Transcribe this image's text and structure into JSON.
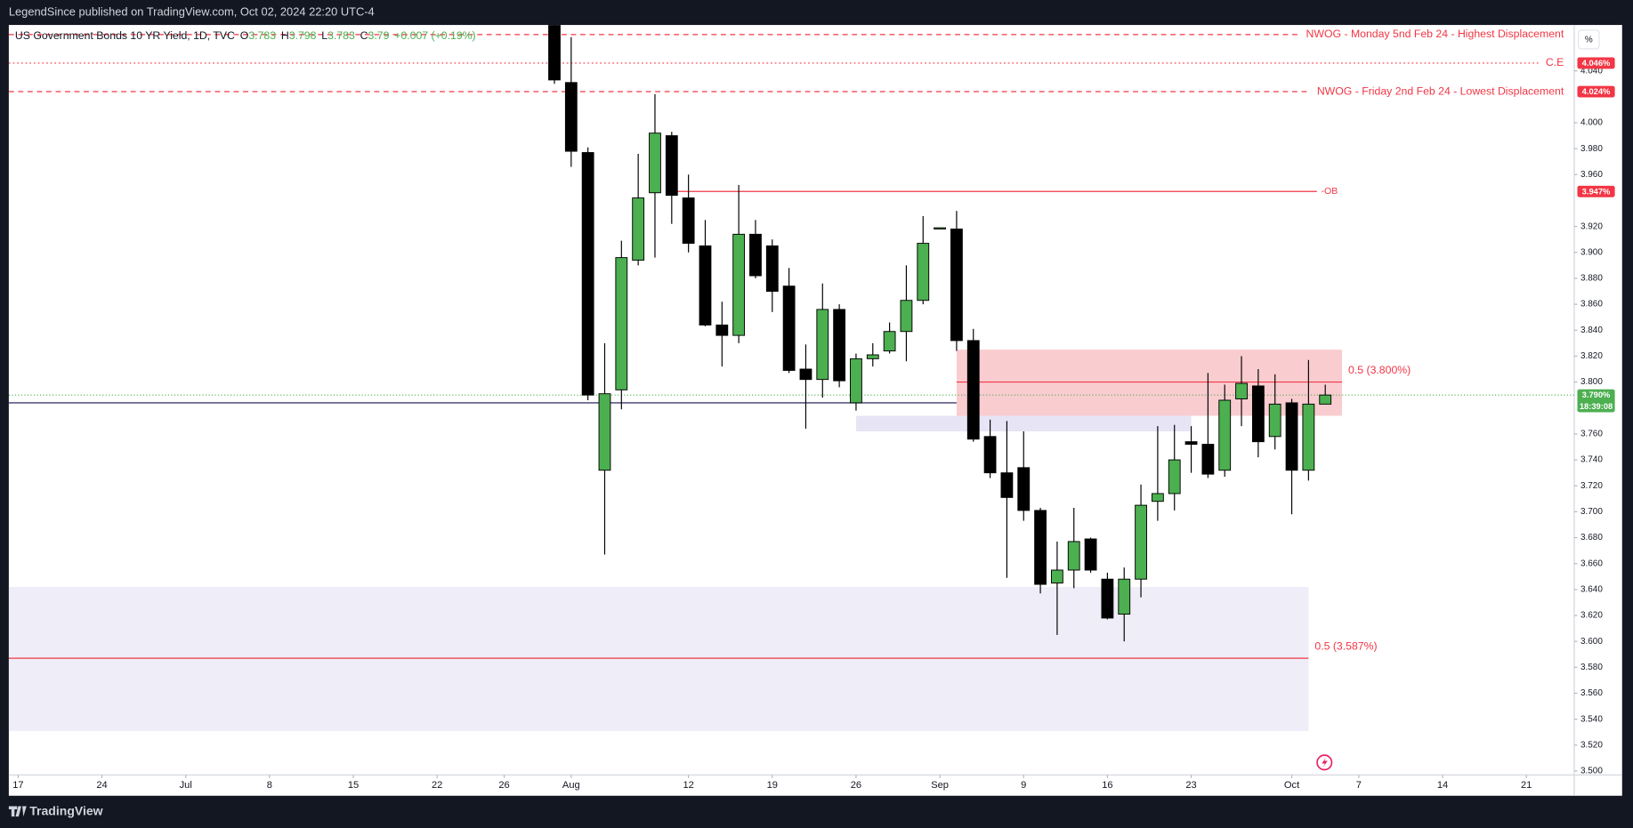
{
  "header": {
    "published": "LegendSince published on TradingView.com, Oct 02, 2024 22:20 UTC-4",
    "brand": "TradingView",
    "scale_button": "%"
  },
  "chart_data": {
    "type": "candlestick",
    "series": [
      {
        "name": "US Government Bonds 10 YR Yield, 1D, TVC",
        "up_color": "#4caf50",
        "down_color": "#000000",
        "wick_color": "#000000",
        "x": [
          "2024-07-31",
          "2024-08-01",
          "2024-08-02",
          "2024-08-05",
          "2024-08-06",
          "2024-08-07",
          "2024-08-08",
          "2024-08-09",
          "2024-08-12",
          "2024-08-13",
          "2024-08-14",
          "2024-08-15",
          "2024-08-16",
          "2024-08-19",
          "2024-08-20",
          "2024-08-21",
          "2024-08-22",
          "2024-08-23",
          "2024-08-26",
          "2024-08-27",
          "2024-08-28",
          "2024-08-29",
          "2024-08-30",
          "2024-09-02",
          "2024-09-03",
          "2024-09-04",
          "2024-09-05",
          "2024-09-06",
          "2024-09-09",
          "2024-09-10",
          "2024-09-11",
          "2024-09-12",
          "2024-09-13",
          "2024-09-16",
          "2024-09-17",
          "2024-09-18",
          "2024-09-19",
          "2024-09-20",
          "2024-09-23",
          "2024-09-24",
          "2024-09-25",
          "2024-09-26",
          "2024-09-27",
          "2024-09-30",
          "2024-10-01",
          "2024-10-02",
          "2024-10-03"
        ],
        "open": [
          4.08,
          4.031,
          3.977,
          3.732,
          3.794,
          3.894,
          3.946,
          3.99,
          3.942,
          3.905,
          3.844,
          3.836,
          3.914,
          3.905,
          3.874,
          3.81,
          3.802,
          3.856,
          3.784,
          3.818,
          3.824,
          3.839,
          3.863,
          3.919,
          3.918,
          3.832,
          3.758,
          3.73,
          3.734,
          3.701,
          3.645,
          3.655,
          3.679,
          3.648,
          3.621,
          3.648,
          3.708,
          3.714,
          3.754,
          3.752,
          3.732,
          3.787,
          3.797,
          3.758,
          3.784,
          3.732,
          3.783
        ],
        "high": [
          4.09,
          4.066,
          3.981,
          3.83,
          3.909,
          3.976,
          4.022,
          3.993,
          3.96,
          3.925,
          3.862,
          3.952,
          3.925,
          3.91,
          3.888,
          3.829,
          3.876,
          3.86,
          3.822,
          3.83,
          3.846,
          3.89,
          3.928,
          3.919,
          3.932,
          3.841,
          3.771,
          3.77,
          3.762,
          3.703,
          3.677,
          3.703,
          3.68,
          3.653,
          3.657,
          3.721,
          3.766,
          3.767,
          3.766,
          3.807,
          3.798,
          3.82,
          3.81,
          3.806,
          3.787,
          3.817,
          3.798
        ],
        "low": [
          4.03,
          3.966,
          3.786,
          3.667,
          3.779,
          3.89,
          3.896,
          3.922,
          3.9,
          3.843,
          3.812,
          3.83,
          3.88,
          3.854,
          3.807,
          3.764,
          3.788,
          3.796,
          3.778,
          3.812,
          3.822,
          3.816,
          3.86,
          3.919,
          3.824,
          3.754,
          3.726,
          3.649,
          3.693,
          3.637,
          3.605,
          3.641,
          3.653,
          3.617,
          3.6,
          3.634,
          3.693,
          3.701,
          3.73,
          3.726,
          3.727,
          3.766,
          3.742,
          3.748,
          3.698,
          3.724,
          3.783
        ],
        "close": [
          4.033,
          3.978,
          3.79,
          3.791,
          3.896,
          3.942,
          3.992,
          3.944,
          3.907,
          3.844,
          3.836,
          3.914,
          3.882,
          3.87,
          3.809,
          3.802,
          3.856,
          3.801,
          3.818,
          3.821,
          3.839,
          3.863,
          3.907,
          3.919,
          3.832,
          3.756,
          3.73,
          3.711,
          3.701,
          3.644,
          3.655,
          3.677,
          3.655,
          3.618,
          3.648,
          3.705,
          3.714,
          3.74,
          3.752,
          3.729,
          3.786,
          3.799,
          3.754,
          3.783,
          3.732,
          3.783,
          3.79
        ]
      }
    ],
    "ohlc_labels": [
      "O",
      "H",
      "L",
      "C"
    ],
    "change": "+0.007 (+0.19%)",
    "ylim": [
      3.497,
      4.0754
    ],
    "yticks": [
      {
        "value": 3.5,
        "label": "3.500"
      },
      {
        "value": 3.52,
        "label": "3.520"
      },
      {
        "value": 3.54,
        "label": "3.540"
      },
      {
        "value": 3.56,
        "label": "3.560"
      },
      {
        "value": 3.58,
        "label": "3.580"
      },
      {
        "value": 3.6,
        "label": "3.600"
      },
      {
        "value": 3.62,
        "label": "3.620"
      },
      {
        "value": 3.64,
        "label": "3.640"
      },
      {
        "value": 3.66,
        "label": "3.660"
      },
      {
        "value": 3.68,
        "label": "3.680"
      },
      {
        "value": 3.7,
        "label": "3.700"
      },
      {
        "value": 3.72,
        "label": "3.720"
      },
      {
        "value": 3.74,
        "label": "3.740"
      },
      {
        "value": 3.76,
        "label": "3.760"
      },
      {
        "value": 3.8,
        "label": "3.800"
      },
      {
        "value": 3.82,
        "label": "3.820"
      },
      {
        "value": 3.84,
        "label": "3.840"
      },
      {
        "value": 3.86,
        "label": "3.860"
      },
      {
        "value": 3.88,
        "label": "3.880"
      },
      {
        "value": 3.9,
        "label": "3.900"
      },
      {
        "value": 3.92,
        "label": "3.920"
      },
      {
        "value": 3.96,
        "label": "3.960"
      },
      {
        "value": 3.98,
        "label": "3.980"
      },
      {
        "value": 4.0,
        "label": "4.000"
      },
      {
        "value": 4.04,
        "label": "4.040"
      }
    ],
    "xticks": [
      {
        "value": "2024-06-17",
        "label": "17"
      },
      {
        "value": "2024-06-24",
        "label": "24"
      },
      {
        "value": "2024-07-01",
        "label": "Jul"
      },
      {
        "value": "2024-07-08",
        "label": "8"
      },
      {
        "value": "2024-07-15",
        "label": "15"
      },
      {
        "value": "2024-07-22",
        "label": "22"
      },
      {
        "value": "2024-07-26",
        "label": "26"
      },
      {
        "value": "2024-08-01",
        "label": "Aug"
      },
      {
        "value": "2024-08-12",
        "label": "12"
      },
      {
        "value": "2024-08-19",
        "label": "19"
      },
      {
        "value": "2024-08-26",
        "label": "26"
      },
      {
        "value": "2024-09-02",
        "label": "Sep"
      },
      {
        "value": "2024-09-09",
        "label": "9"
      },
      {
        "value": "2024-09-16",
        "label": "16"
      },
      {
        "value": "2024-09-23",
        "label": "23"
      },
      {
        "value": "2024-10-01",
        "label": "Oct"
      },
      {
        "value": "2024-10-07",
        "label": "7"
      },
      {
        "value": "2024-10-14",
        "label": "14"
      },
      {
        "value": "2024-10-21",
        "label": "21"
      }
    ],
    "levels": [
      {
        "label": "NWOG - Monday 5nd Feb 24 - Highest Displacement",
        "value": 4.068,
        "style": "dashed",
        "color": "#f23645"
      },
      {
        "label": "C.E",
        "value": 4.046,
        "style": "dotted",
        "color": "#f23645",
        "price_label": "4.046%"
      },
      {
        "label": "NWOG - Friday 2nd Feb 24 - Lowest Displacement",
        "value": 4.024,
        "style": "dashed",
        "color": "#f23645",
        "price_label": "4.024%"
      }
    ],
    "order_block": {
      "label": "-OB",
      "value": 3.947,
      "start": "2024-08-09",
      "end": "2024-10-03",
      "color": "#f23645",
      "price_label": "3.947%"
    },
    "zones": [
      {
        "top": 3.825,
        "bottom": 3.774,
        "start": "2024-09-03",
        "end": "2024-10-04",
        "color": "#f9ccd0",
        "mid": 3.8,
        "mid_label": "0.5 (3.800%)",
        "mid_color": "#f23645"
      },
      {
        "top": 3.774,
        "bottom": 3.762,
        "start": "2024-08-26",
        "end": "2024-09-23",
        "color": "#e7e4f5"
      },
      {
        "top": 3.642,
        "bottom": 3.531,
        "end": "2024-10-02",
        "color": "#efedf7",
        "mid": 3.587,
        "mid_label": "0.5 (3.587%)",
        "mid_color": "#f23645"
      }
    ],
    "support_line": {
      "value": 3.784,
      "end": "2024-09-03",
      "color": "#3f3d6e"
    },
    "last_price": {
      "value": 3.79,
      "label": "3.790%",
      "countdown": "18:39:08",
      "color": "#4caf50"
    }
  }
}
